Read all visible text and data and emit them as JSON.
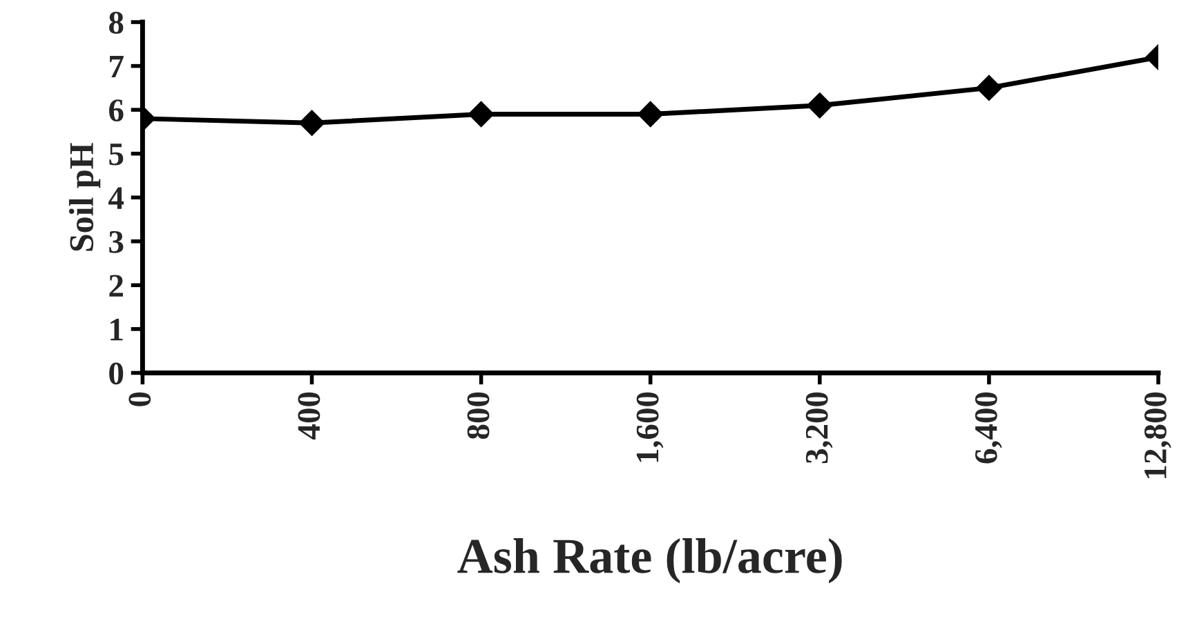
{
  "chart_data": {
    "type": "line",
    "xlabel": "Ash Rate (lb/acre)",
    "ylabel": "Soil pH",
    "categories": [
      "0",
      "400",
      "800",
      "1,600",
      "3,200",
      "6,400",
      "12,800"
    ],
    "values": [
      5.8,
      5.7,
      5.9,
      5.9,
      6.1,
      6.5,
      7.2
    ],
    "color": "#000000",
    "marker": "diamond",
    "line_style": "solid",
    "ylim": [
      0,
      8
    ],
    "yticks": [
      0,
      1,
      2,
      3,
      4,
      5,
      6,
      7,
      8
    ],
    "grid": false,
    "legend": false
  }
}
